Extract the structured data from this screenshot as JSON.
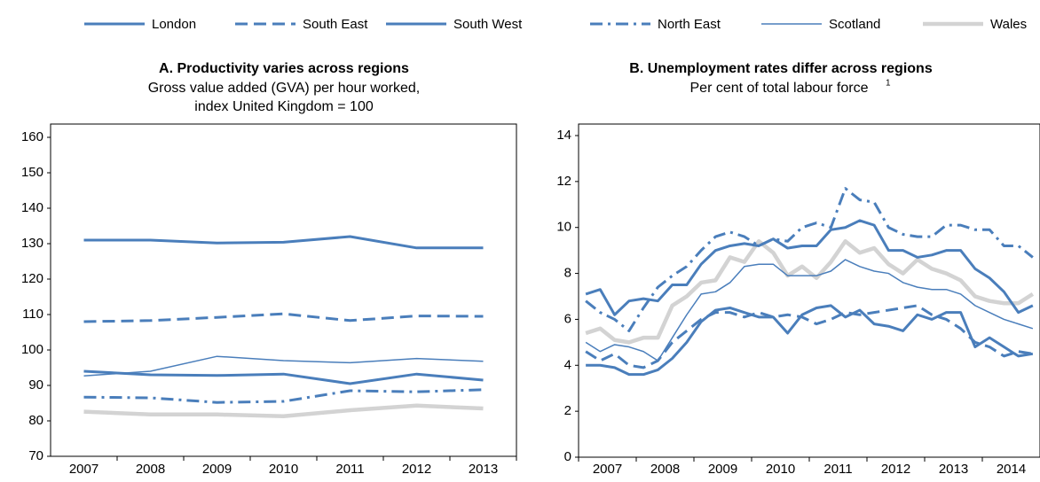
{
  "chart_data": [
    {
      "type": "line",
      "title": "A. Productivity varies across regions",
      "subtitle": [
        "Gross value added (GVA) per hour worked,",
        "index United Kingdom = 100"
      ],
      "categories": [
        "2007",
        "2008",
        "2009",
        "2010",
        "2011",
        "2012",
        "2013"
      ],
      "ylim": [
        70,
        160
      ],
      "yticks": [
        70,
        80,
        90,
        100,
        110,
        120,
        130,
        140,
        150,
        160
      ],
      "series": [
        {
          "name": "London",
          "color": "#4a7ebb",
          "style": "solid",
          "values": [
            131,
            131,
            130.2,
            130.4,
            132,
            128.8,
            128.8
          ]
        },
        {
          "name": "South East",
          "color": "#4a7ebb",
          "style": "dashed",
          "values": [
            108,
            108.3,
            109.2,
            110.2,
            108.3,
            109.6,
            109.5
          ]
        },
        {
          "name": "South West",
          "color": "#4a7ebb",
          "style": "solid",
          "values": [
            94,
            93,
            92.8,
            93.2,
            90.5,
            93.2,
            91.5
          ]
        },
        {
          "name": "North East",
          "color": "#4a7ebb",
          "style": "dashdot",
          "values": [
            86.7,
            86.5,
            85.2,
            85.5,
            88.5,
            88.2,
            88.8
          ]
        },
        {
          "name": "Scotland",
          "color": "#4a7ebb",
          "style": "thin",
          "values": [
            92.7,
            94,
            98.2,
            97,
            96.4,
            97.6,
            96.8
          ]
        },
        {
          "name": "Wales",
          "color": "#d3d3d3",
          "style": "thick",
          "values": [
            82.6,
            81.8,
            81.8,
            81.3,
            83,
            84.3,
            83.5
          ]
        }
      ]
    },
    {
      "type": "line",
      "title": "B. Unemployment rates differ across regions",
      "subtitle": [
        "Per cent of total labour force"
      ],
      "footnote_marker": "1",
      "categories": [
        "2007",
        null,
        null,
        null,
        "2008",
        null,
        null,
        null,
        "2009",
        null,
        null,
        null,
        "2010",
        null,
        null,
        null,
        "2011",
        null,
        null,
        null,
        "2012",
        null,
        null,
        null,
        "2013",
        null,
        null,
        null,
        "2014",
        null,
        null,
        null
      ],
      "ylim": [
        0,
        14
      ],
      "yticks": [
        0,
        2,
        4,
        6,
        8,
        10,
        12,
        14
      ],
      "series": [
        {
          "name": "London",
          "color": "#4a7ebb",
          "style": "solid",
          "values": [
            7.1,
            7.3,
            6.2,
            6.8,
            6.9,
            6.8,
            7.5,
            7.5,
            8.4,
            9.0,
            9.2,
            9.3,
            9.2,
            9.5,
            9.1,
            9.2,
            9.2,
            9.9,
            10.0,
            10.3,
            10.1,
            9.0,
            9.0,
            8.7,
            8.8,
            9.0,
            9.0,
            8.2,
            7.8,
            7.2,
            6.3,
            6.6
          ]
        },
        {
          "name": "South East",
          "color": "#4a7ebb",
          "style": "dashed",
          "values": [
            4.6,
            4.2,
            4.5,
            4.0,
            3.9,
            4.2,
            5.0,
            5.5,
            6.0,
            6.3,
            6.3,
            6.1,
            6.3,
            6.1,
            6.2,
            6.1,
            5.8,
            6.0,
            6.3,
            6.2,
            6.3,
            6.4,
            6.5,
            6.6,
            6.2,
            6.0,
            5.6,
            5.0,
            4.8,
            4.4,
            4.6,
            4.5
          ]
        },
        {
          "name": "South West",
          "color": "#4a7ebb",
          "style": "solid",
          "values": [
            4.0,
            4.0,
            3.9,
            3.6,
            3.6,
            3.8,
            4.3,
            5.0,
            5.9,
            6.4,
            6.5,
            6.3,
            6.1,
            6.1,
            5.4,
            6.2,
            6.5,
            6.6,
            6.1,
            6.4,
            5.8,
            5.7,
            5.5,
            6.2,
            6.0,
            6.3,
            6.3,
            4.8,
            5.2,
            4.8,
            4.4,
            4.5
          ]
        },
        {
          "name": "North East",
          "color": "#4a7ebb",
          "style": "dashdot",
          "values": [
            6.8,
            6.3,
            6.0,
            5.5,
            6.5,
            7.4,
            7.9,
            8.3,
            9.0,
            9.6,
            9.8,
            9.6,
            9.2,
            9.5,
            9.4,
            10.0,
            10.2,
            10.0,
            11.7,
            11.2,
            11.1,
            10.0,
            9.7,
            9.6,
            9.6,
            10.1,
            10.1,
            9.9,
            9.9,
            9.2,
            9.2,
            8.7
          ]
        },
        {
          "name": "Scotland",
          "color": "#4a7ebb",
          "style": "thin",
          "values": [
            5.0,
            4.6,
            4.9,
            4.8,
            4.6,
            4.2,
            5.2,
            6.2,
            7.1,
            7.2,
            7.6,
            8.3,
            8.4,
            8.4,
            7.9,
            7.9,
            7.9,
            8.1,
            8.6,
            8.3,
            8.1,
            8.0,
            7.6,
            7.4,
            7.3,
            7.3,
            7.1,
            6.6,
            6.3,
            6.0,
            5.8,
            5.6
          ]
        },
        {
          "name": "Wales",
          "color": "#d3d3d3",
          "style": "thick",
          "values": [
            5.4,
            5.6,
            5.1,
            5.0,
            5.2,
            5.2,
            6.6,
            7.0,
            7.6,
            7.7,
            8.7,
            8.5,
            9.4,
            8.9,
            7.9,
            8.3,
            7.8,
            8.5,
            9.4,
            8.9,
            9.1,
            8.4,
            8.0,
            8.6,
            8.2,
            8.0,
            7.7,
            7.0,
            6.8,
            6.7,
            6.7,
            7.1
          ]
        }
      ]
    }
  ]
}
